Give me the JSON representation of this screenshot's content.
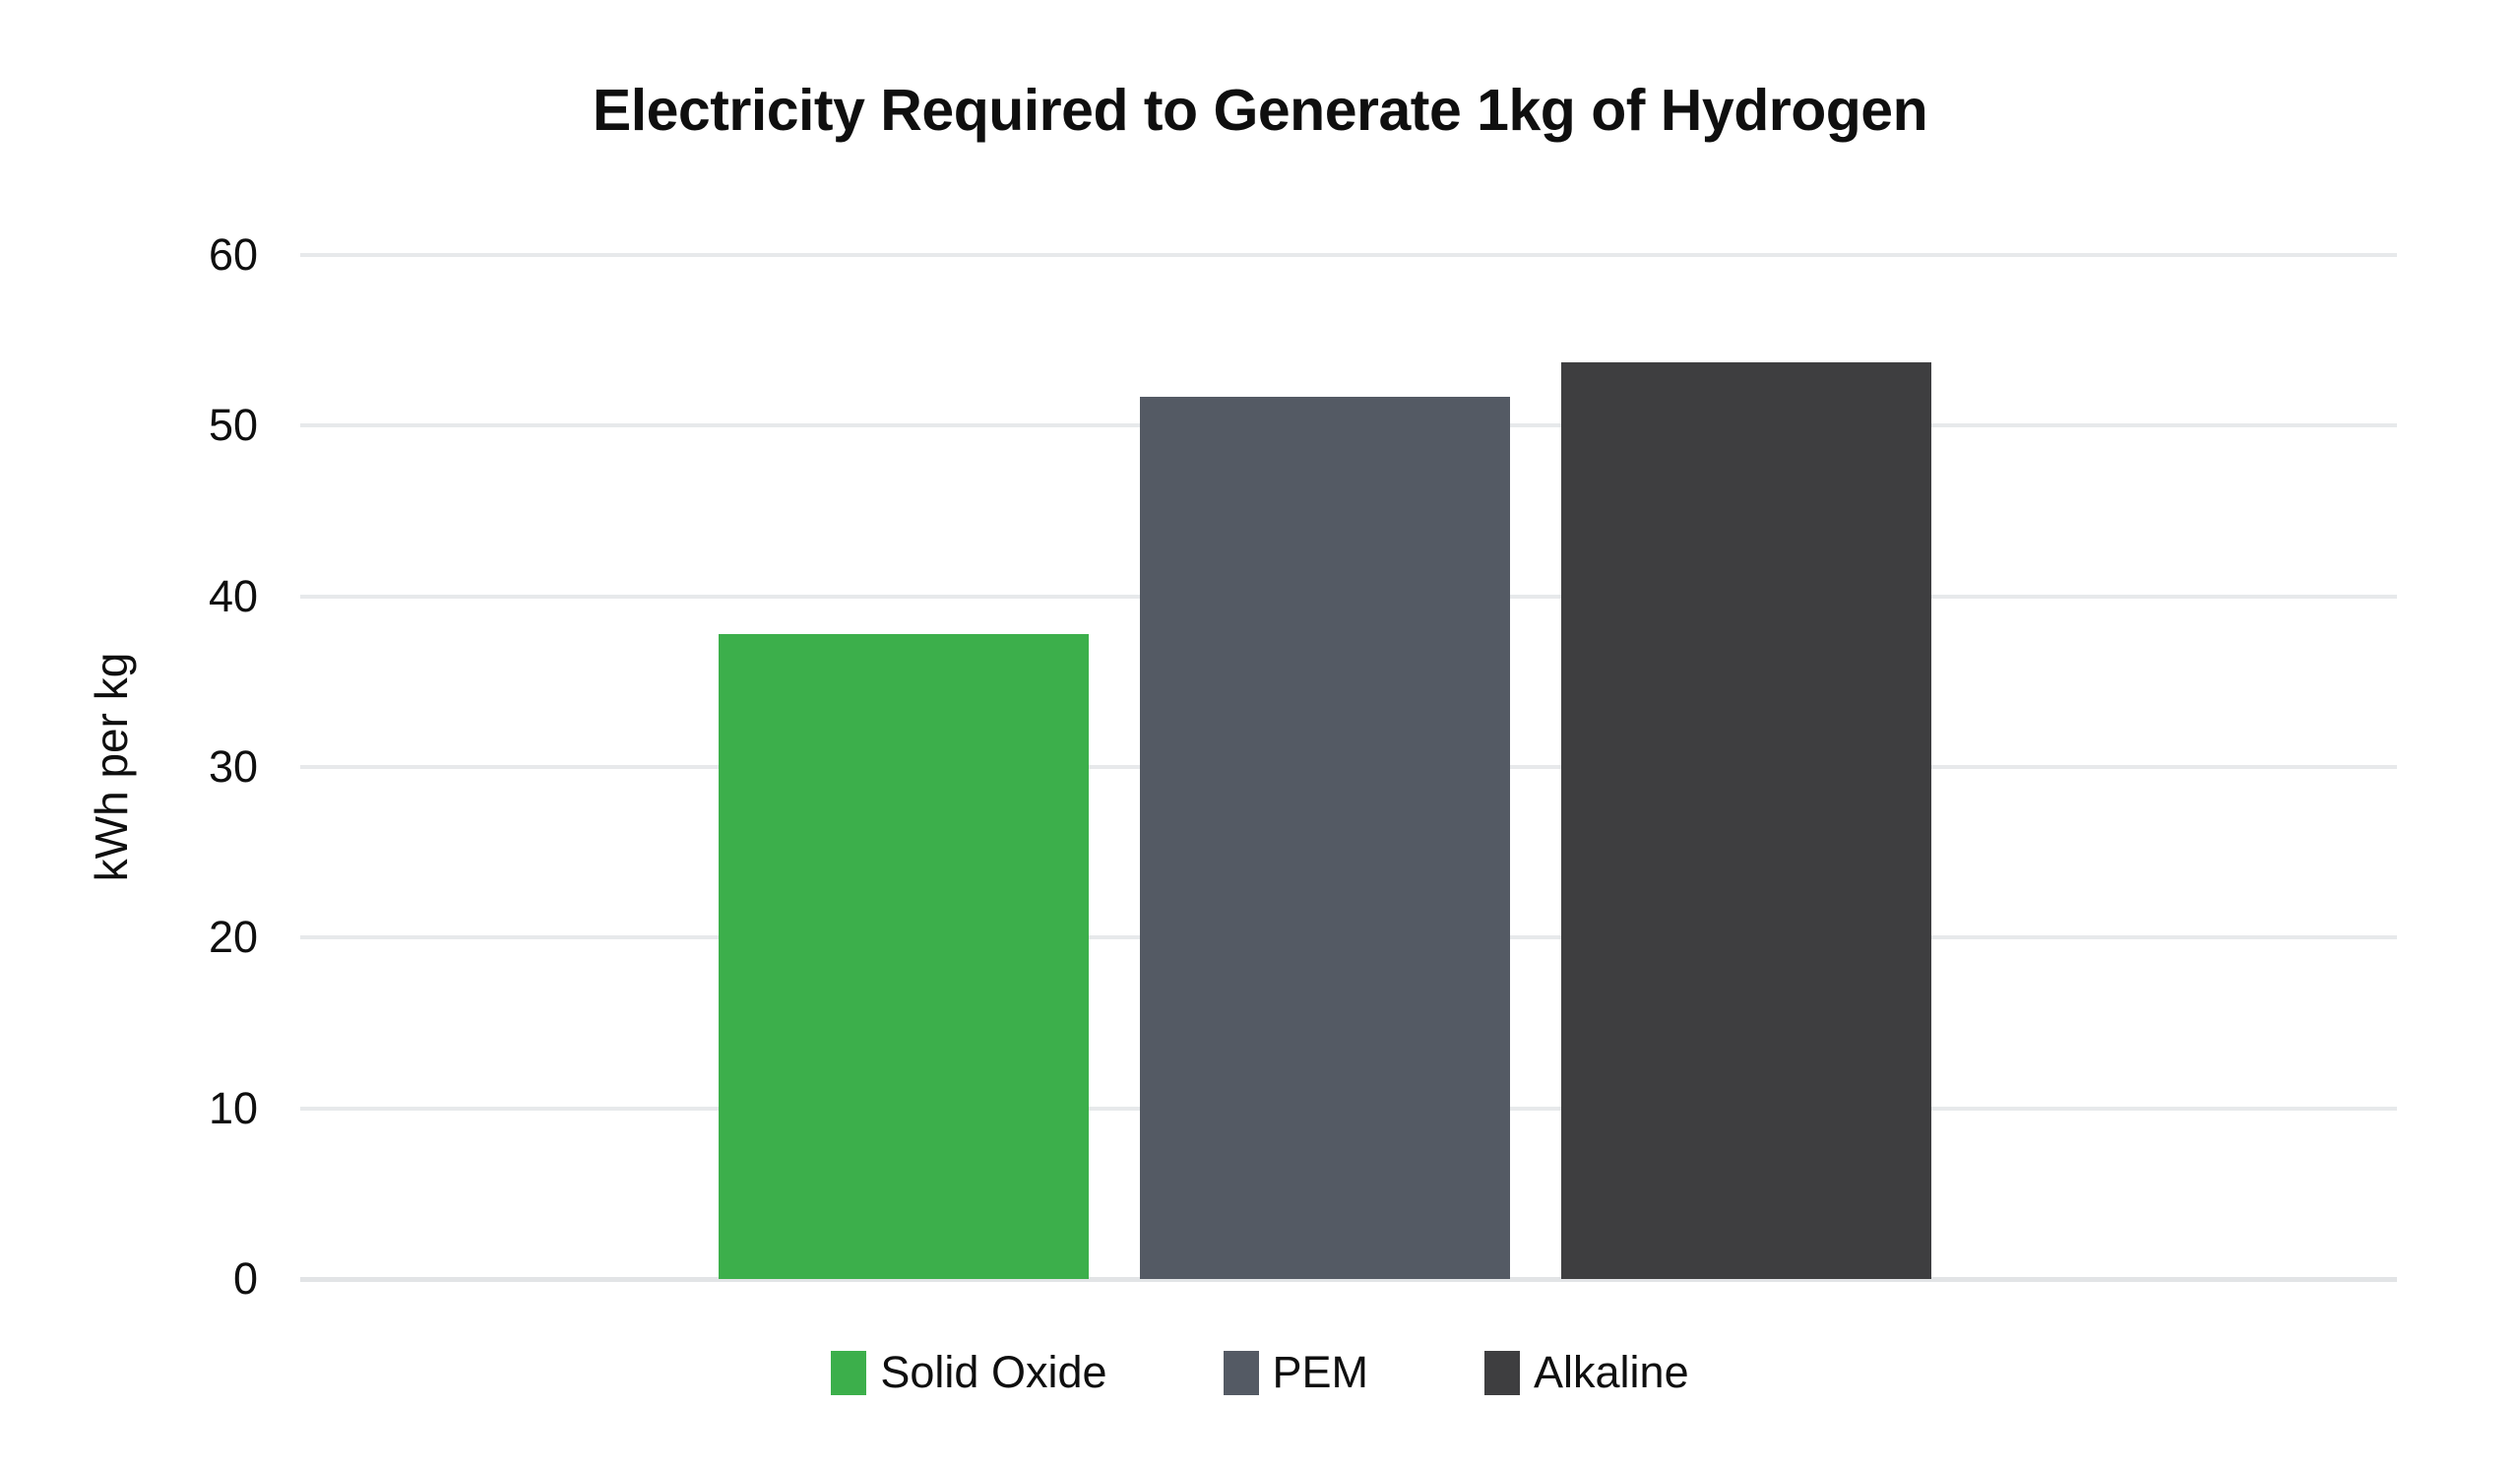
{
  "page": {
    "background_color": "#ffffff",
    "text_color": "#0f0f0f"
  },
  "chart_data": {
    "type": "bar",
    "title": "Electricity Required to Generate 1kg of Hydrogen",
    "xlabel": "",
    "ylabel": "kWh per kg",
    "categories": [
      "Solid Oxide",
      "PEM",
      "Alkaline"
    ],
    "values": [
      37.8,
      51.7,
      53.7
    ],
    "bar_colors": [
      "#3CAF4B",
      "#545A64",
      "#3E3E40"
    ],
    "ylim": [
      0,
      60
    ],
    "yticks": [
      0,
      10,
      20,
      30,
      40,
      50,
      60
    ],
    "grid": true,
    "gridline_color": "#E7E9EB",
    "legend_position": "bottom",
    "legend": [
      {
        "label": "Solid Oxide",
        "color": "#3CAF4B"
      },
      {
        "label": "PEM",
        "color": "#545A64"
      },
      {
        "label": "Alkaline",
        "color": "#3E3E40"
      }
    ]
  }
}
